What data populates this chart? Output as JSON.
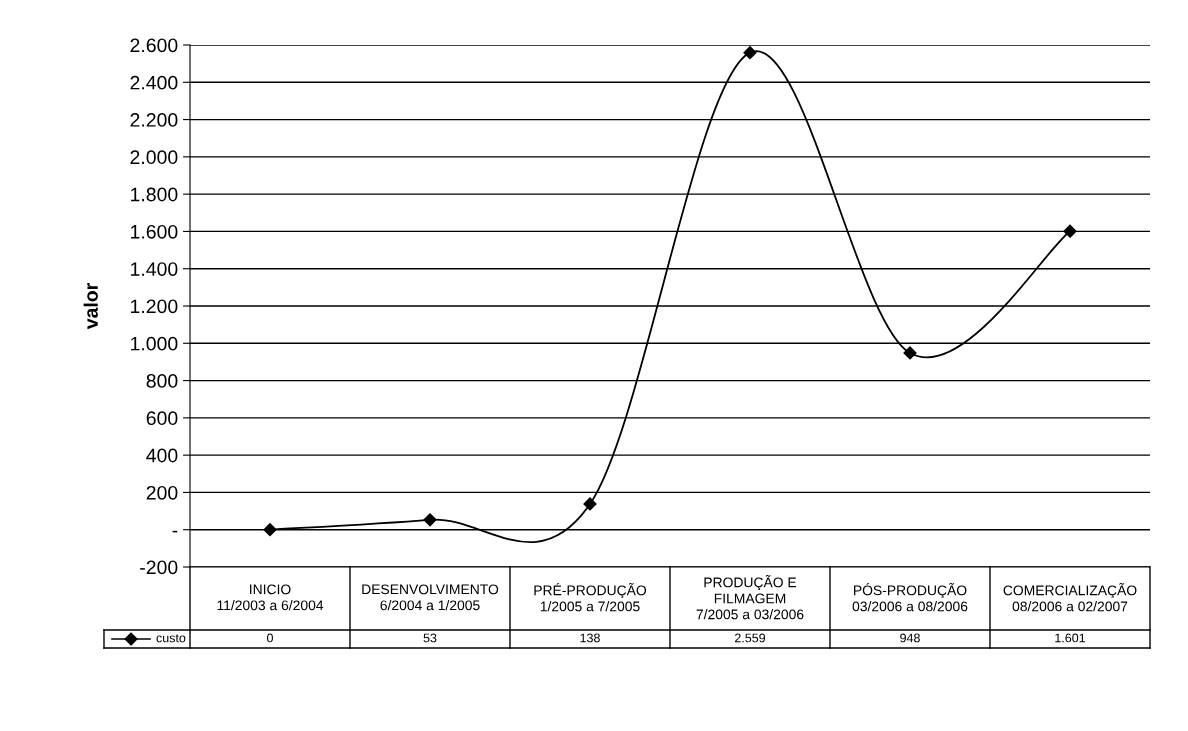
{
  "chart_data": {
    "type": "line",
    "ylabel": "valor",
    "categories": [
      "INICIO\n11/2003 a 6/2004",
      "DESENVOLVIMENTO\n6/2004 a 1/2005",
      "PRÉ-PRODUÇÃO\n1/2005 a 7/2005",
      "PRODUÇÃO E\nFILMAGEM\n7/2005 a 03/2006",
      "PÓS-PRODUÇÃO\n03/2006 a 08/2006",
      "COMERCIALIZAÇÃO\n08/2006 a 02/2007"
    ],
    "series": [
      {
        "name": "custo",
        "color": "#000000",
        "values": [
          0,
          53,
          138,
          2559,
          948,
          1601
        ],
        "value_labels": [
          "0",
          "53",
          "138",
          "2.559",
          "948",
          "1.601"
        ]
      }
    ],
    "ylim": [
      -200,
      2600
    ],
    "yticks": [
      -200,
      {
        "value": 0,
        "label": "-"
      },
      {
        "value": 200,
        "label": "200"
      },
      {
        "value": 400,
        "label": "400"
      },
      {
        "value": 600,
        "label": "600"
      },
      {
        "value": 800,
        "label": "800"
      },
      {
        "value": 1000,
        "label": "1.000"
      },
      {
        "value": 1200,
        "label": "1.200"
      },
      {
        "value": 1400,
        "label": "1.400"
      },
      {
        "value": 1600,
        "label": "1.600"
      },
      {
        "value": 1800,
        "label": "1.800"
      },
      {
        "value": 2000,
        "label": "2.000"
      },
      {
        "value": 2200,
        "label": "2.200"
      },
      {
        "value": 2400,
        "label": "2.400"
      },
      {
        "value": 2600,
        "label": "2.600"
      }
    ],
    "grid": "y",
    "marker": "diamond",
    "line_style": "solid",
    "legend": "bottom left"
  }
}
